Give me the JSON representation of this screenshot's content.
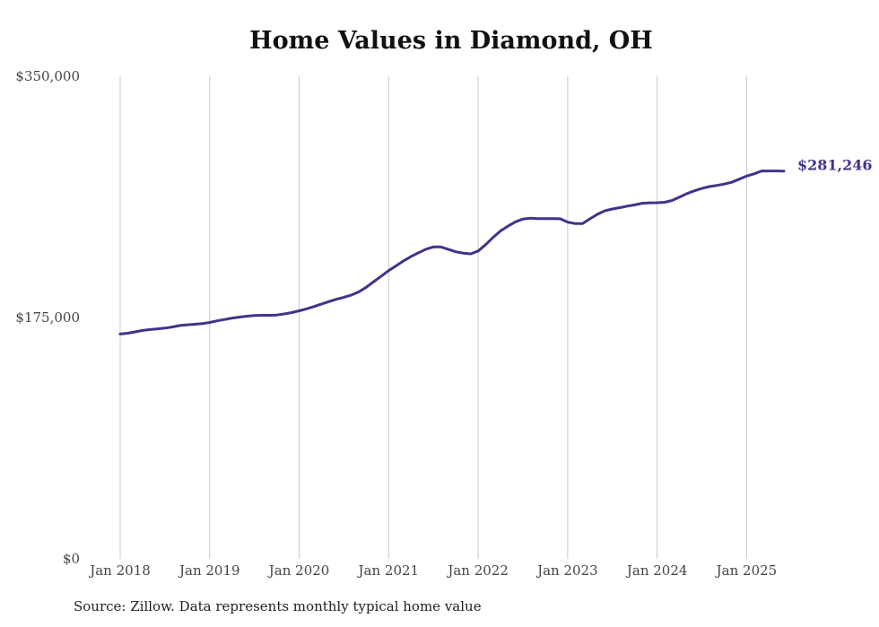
{
  "colors": {
    "line": "#3d3589",
    "grid": "#c8c8c8"
  },
  "source_text": "Source: Zillow. Data represents monthly typical home value",
  "chart_data": {
    "type": "line",
    "title": "Home Values in Diamond, OH",
    "xlabel": "",
    "ylabel": "",
    "xlim": [
      "2018-01",
      "2025-06"
    ],
    "ylim": [
      0,
      350000
    ],
    "y_ticks": [
      0,
      175000,
      350000
    ],
    "y_tick_labels": [
      "$0",
      "$175,000",
      "$350,000"
    ],
    "x_ticks": [
      "2018-01",
      "2019-01",
      "2020-01",
      "2021-01",
      "2022-01",
      "2023-01",
      "2024-01",
      "2025-01"
    ],
    "x_tick_labels": [
      "Jan 2018",
      "Jan 2019",
      "Jan 2020",
      "Jan 2021",
      "Jan 2022",
      "Jan 2023",
      "Jan 2024",
      "Jan 2025"
    ],
    "grid": "vertical",
    "end_label": "$281,246",
    "series": [
      {
        "x": [
          "2018-01",
          "2018-02",
          "2018-03",
          "2018-04",
          "2018-05",
          "2018-06",
          "2018-07",
          "2018-08",
          "2018-09",
          "2018-10",
          "2018-11",
          "2018-12",
          "2019-01",
          "2019-02",
          "2019-03",
          "2019-04",
          "2019-05",
          "2019-06",
          "2019-07",
          "2019-08",
          "2019-09",
          "2019-10",
          "2019-11",
          "2019-12",
          "2020-01",
          "2020-02",
          "2020-03",
          "2020-04",
          "2020-05",
          "2020-06",
          "2020-07",
          "2020-08",
          "2020-09",
          "2020-10",
          "2020-11",
          "2020-12",
          "2021-01",
          "2021-02",
          "2021-03",
          "2021-04",
          "2021-05",
          "2021-06",
          "2021-07",
          "2021-08",
          "2021-09",
          "2021-10",
          "2021-11",
          "2021-12",
          "2022-01",
          "2022-02",
          "2022-03",
          "2022-04",
          "2022-05",
          "2022-06",
          "2022-07",
          "2022-08",
          "2022-09",
          "2022-10",
          "2022-11",
          "2022-12",
          "2023-01",
          "2023-02",
          "2023-03",
          "2023-04",
          "2023-05",
          "2023-06",
          "2023-07",
          "2023-08",
          "2023-09",
          "2023-10",
          "2023-11",
          "2023-12",
          "2024-01",
          "2024-02",
          "2024-03",
          "2024-04",
          "2024-05",
          "2024-06",
          "2024-07",
          "2024-08",
          "2024-09",
          "2024-10",
          "2024-11",
          "2024-12",
          "2025-01",
          "2025-02",
          "2025-03",
          "2025-04",
          "2025-05",
          "2025-06"
        ],
        "values": [
          163000,
          163600,
          164600,
          165600,
          166300,
          166800,
          167300,
          168200,
          169200,
          169700,
          170100,
          170600,
          171400,
          172600,
          173600,
          174600,
          175300,
          176000,
          176500,
          176600,
          176600,
          176800,
          177600,
          178600,
          179900,
          181300,
          183000,
          184800,
          186600,
          188300,
          189700,
          191300,
          193600,
          197000,
          201000,
          205000,
          209000,
          212500,
          216100,
          219300,
          222000,
          224600,
          226200,
          226200,
          224500,
          222700,
          221700,
          221200,
          223300,
          227800,
          233100,
          237800,
          241300,
          244400,
          246400,
          247000,
          246700,
          246700,
          246700,
          246600,
          244200,
          243100,
          243100,
          246600,
          249900,
          252400,
          253700,
          254700,
          255800,
          256700,
          257900,
          258200,
          258300,
          258600,
          259900,
          262400,
          264900,
          266900,
          268600,
          270000,
          270800,
          271800,
          273100,
          275300,
          277600,
          279200,
          281300,
          281300,
          281300,
          281246
        ]
      }
    ]
  }
}
